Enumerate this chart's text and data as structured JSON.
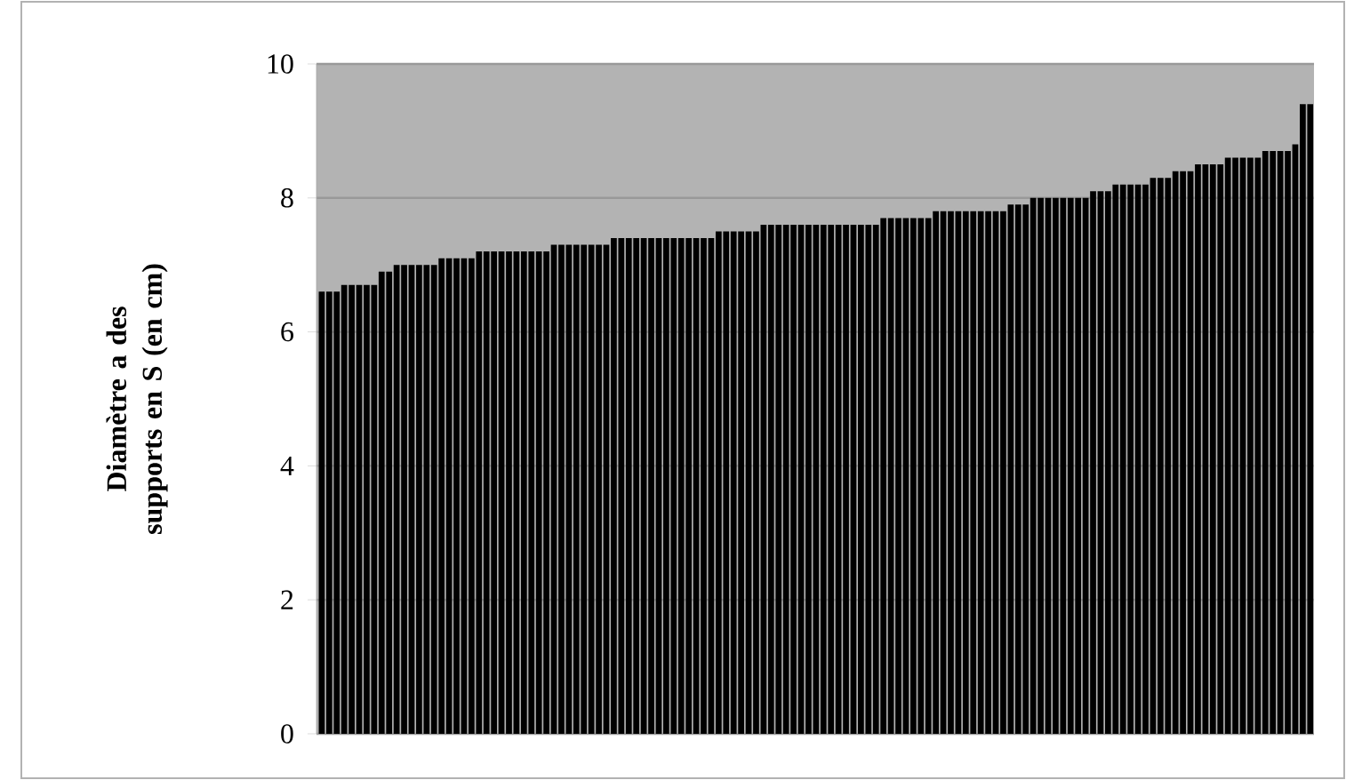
{
  "chart_data": {
    "type": "bar",
    "ylabel": "Diamètre a des supports en S (en cm)",
    "categories": [
      null,
      null,
      null,
      null,
      null,
      null,
      null,
      null,
      null,
      null,
      null,
      null,
      null,
      null,
      null,
      null,
      null,
      null,
      null,
      null,
      null,
      null,
      null,
      null,
      null,
      null,
      null,
      null,
      null,
      null,
      null,
      null,
      null,
      null,
      null,
      null,
      null,
      null,
      null,
      null,
      null,
      null,
      null,
      null,
      null,
      null,
      null,
      null,
      null,
      null,
      null,
      null,
      null,
      null,
      null,
      null,
      null,
      null,
      null,
      null,
      null,
      null,
      null,
      null,
      null,
      null,
      null,
      null,
      null,
      null,
      null,
      null,
      null,
      null,
      null,
      null,
      null,
      null,
      null,
      null,
      null,
      null,
      null,
      null,
      null,
      null,
      null,
      null,
      null,
      null,
      null,
      null,
      null,
      null,
      null,
      null,
      null,
      null,
      null,
      null,
      null,
      null,
      null,
      null,
      null,
      null,
      null,
      null,
      null,
      null,
      null,
      null,
      null,
      null,
      null,
      null,
      null,
      null,
      null,
      null,
      null,
      null,
      null,
      null,
      null,
      null,
      null,
      null,
      null,
      null,
      null,
      null,
      null
    ],
    "values": [
      6.6,
      6.6,
      6.6,
      6.7,
      6.7,
      6.7,
      6.7,
      6.7,
      6.9,
      6.9,
      7.0,
      7.0,
      7.0,
      7.0,
      7.0,
      7.0,
      7.1,
      7.1,
      7.1,
      7.1,
      7.1,
      7.2,
      7.2,
      7.2,
      7.2,
      7.2,
      7.2,
      7.2,
      7.2,
      7.2,
      7.2,
      7.3,
      7.3,
      7.3,
      7.3,
      7.3,
      7.3,
      7.3,
      7.3,
      7.4,
      7.4,
      7.4,
      7.4,
      7.4,
      7.4,
      7.4,
      7.4,
      7.4,
      7.4,
      7.4,
      7.4,
      7.4,
      7.4,
      7.5,
      7.5,
      7.5,
      7.5,
      7.5,
      7.5,
      7.6,
      7.6,
      7.6,
      7.6,
      7.6,
      7.6,
      7.6,
      7.6,
      7.6,
      7.6,
      7.6,
      7.6,
      7.6,
      7.6,
      7.6,
      7.6,
      7.7,
      7.7,
      7.7,
      7.7,
      7.7,
      7.7,
      7.7,
      7.8,
      7.8,
      7.8,
      7.8,
      7.8,
      7.8,
      7.8,
      7.8,
      7.8,
      7.8,
      7.9,
      7.9,
      7.9,
      8.0,
      8.0,
      8.0,
      8.0,
      8.0,
      8.0,
      8.0,
      8.0,
      8.1,
      8.1,
      8.1,
      8.2,
      8.2,
      8.2,
      8.2,
      8.2,
      8.3,
      8.3,
      8.3,
      8.4,
      8.4,
      8.4,
      8.5,
      8.5,
      8.5,
      8.5,
      8.6,
      8.6,
      8.6,
      8.6,
      8.6,
      8.7,
      8.7,
      8.7,
      8.7,
      8.8,
      9.4,
      9.4
    ],
    "color": "#000000",
    "ylim": [
      0,
      10
    ],
    "yticks": [
      0,
      2,
      4,
      6,
      8,
      10
    ],
    "grid": "y"
  }
}
